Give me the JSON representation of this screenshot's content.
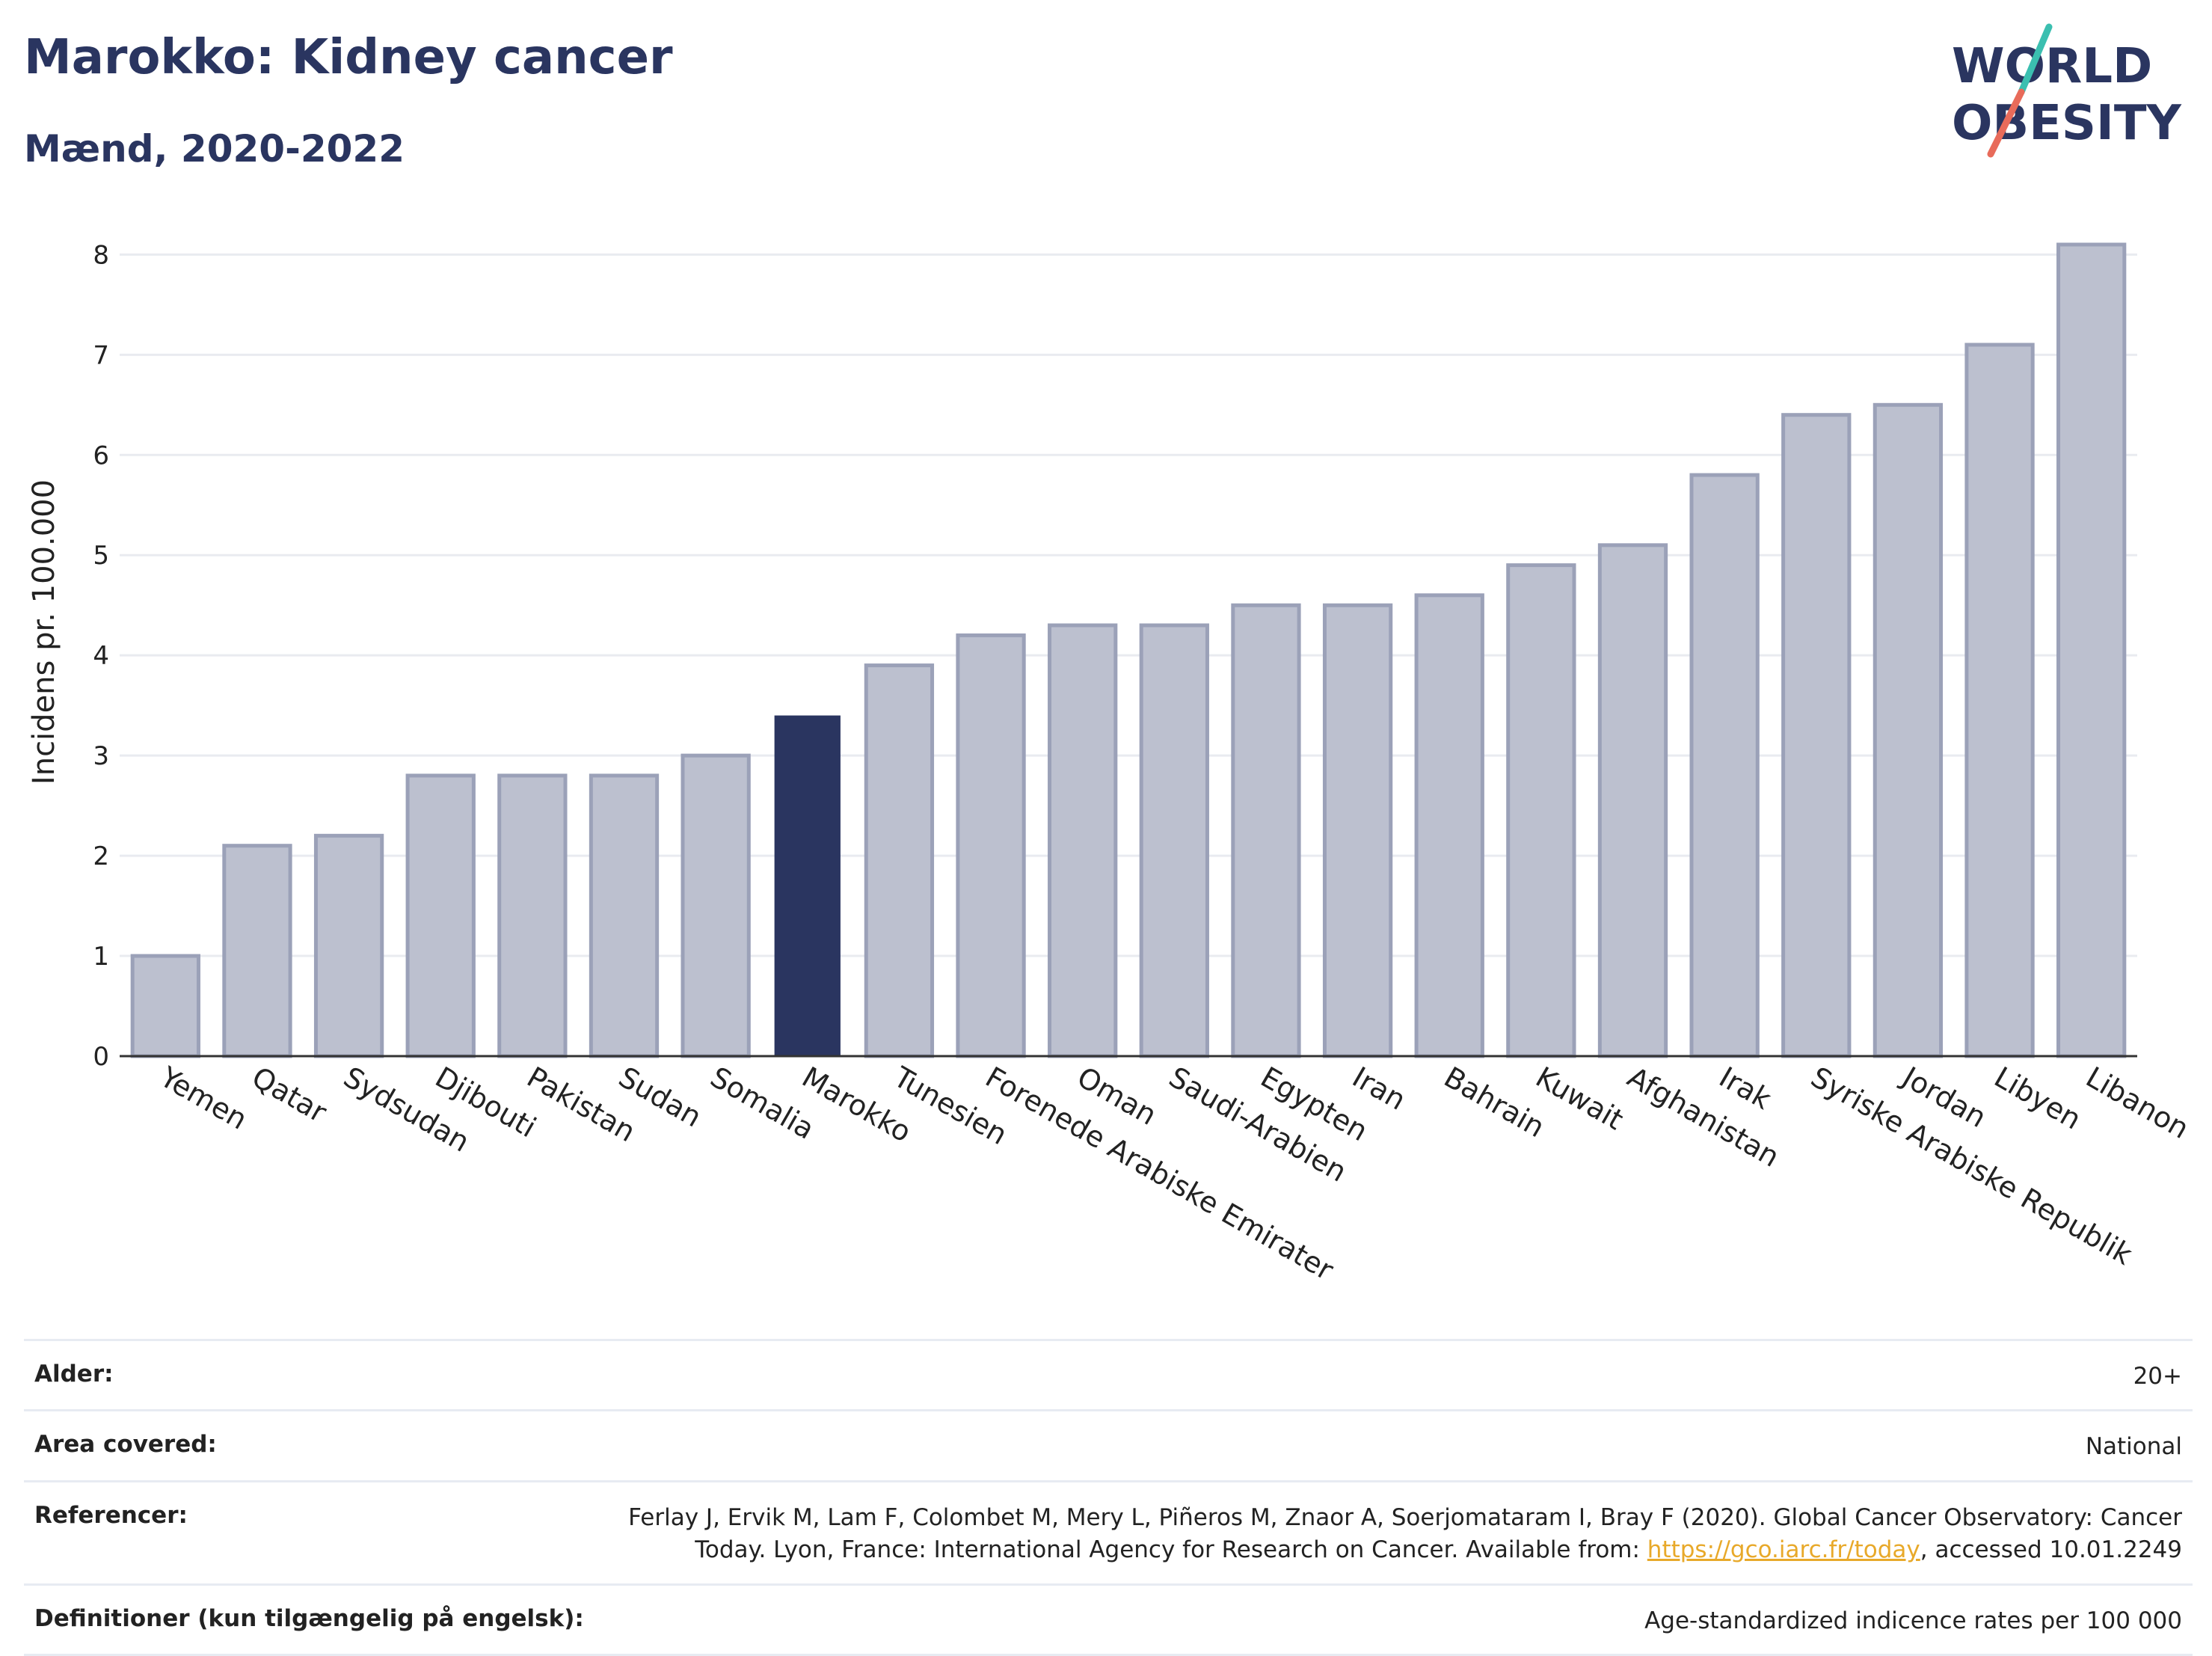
{
  "header": {
    "title": "Marokko: Kidney cancer",
    "subtitle": "Mænd, 2020-2022"
  },
  "logo": {
    "line1": "WORLD",
    "line2": "OBESITY",
    "accent_colors": [
      "#3bbfb0",
      "#e86b5a"
    ]
  },
  "chart_data": {
    "type": "bar",
    "categories": [
      "Yemen",
      "Qatar",
      "Sydsudan",
      "Djibouti",
      "Pakistan",
      "Sudan",
      "Somalia",
      "Marokko",
      "Tunesien",
      "Forenede Arabiske Emirater",
      "Oman",
      "Saudi-Arabien",
      "Egypten",
      "Iran",
      "Bahrain",
      "Kuwait",
      "Afghanistan",
      "Irak",
      "Syriske Arabiske Republik",
      "Jordan",
      "Libyen",
      "Libanon"
    ],
    "values": [
      1.0,
      2.1,
      2.2,
      2.8,
      2.8,
      2.8,
      3.0,
      3.4,
      3.9,
      4.2,
      4.3,
      4.3,
      4.5,
      4.5,
      4.6,
      4.9,
      5.1,
      5.8,
      6.4,
      6.5,
      7.1,
      8.1
    ],
    "highlight": "Marokko",
    "ylabel": "Incidens pr. 100.000",
    "xlabel": "",
    "ylim": [
      0,
      8.6
    ],
    "yticks": [
      0,
      1,
      2,
      3,
      4,
      5,
      6,
      7,
      8
    ],
    "grid": true,
    "bar_color": "#bcc0cf",
    "bar_edge_color": "#9ba1b8",
    "highlight_color": "#2a3560"
  },
  "meta": {
    "rows": [
      {
        "label": "Alder:",
        "value": "20+"
      },
      {
        "label": "Area covered:",
        "value": "National"
      },
      {
        "label": "Referencer:",
        "value_before": "Ferlay J, Ervik M, Lam F, Colombet M, Mery L, Piñeros M, Znaor A, Soerjomataram I, Bray F (2020). Global Cancer Observatory: Cancer Today. Lyon, France: International Agency for Research on Cancer. Available from: ",
        "link": "https://gco.iarc.fr/today",
        "value_after": ", accessed 10.01.2249"
      },
      {
        "label": "Definitioner (kun tilgængelig på engelsk):",
        "value": "Age-standardized indicence rates per 100 000"
      }
    ]
  }
}
